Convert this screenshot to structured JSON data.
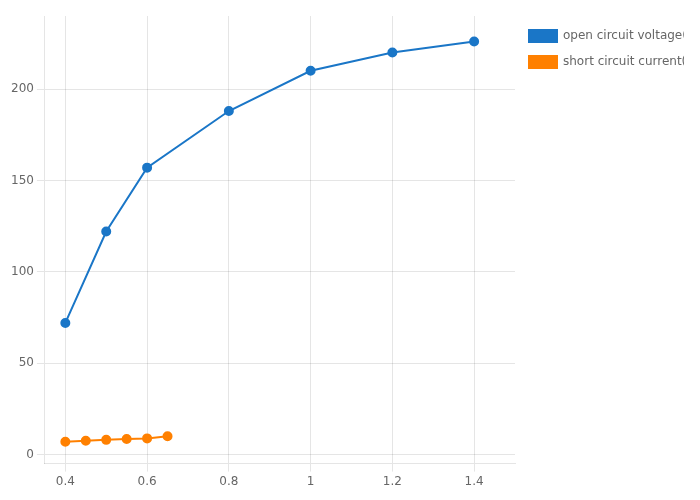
{
  "chart_data": {
    "type": "line",
    "series": [
      {
        "name": "open circuit voltage(V)",
        "color": "#1a76c7",
        "marker": "circle",
        "line_style": "solid",
        "x": [
          0.4,
          0.5,
          0.6,
          0.8,
          1.0,
          1.2,
          1.4
        ],
        "values": [
          72,
          122,
          157,
          188,
          210,
          220,
          226
        ]
      },
      {
        "name": "short circuit current(A)",
        "color": "#ff8000",
        "marker": "circle",
        "line_style": "solid",
        "x": [
          0.4,
          0.45,
          0.5,
          0.55,
          0.6,
          0.65
        ],
        "values": [
          7,
          7.5,
          8,
          8.5,
          8.8,
          10
        ]
      }
    ],
    "xlim": [
      0.35,
      1.5
    ],
    "xticks": [
      0.4,
      0.6,
      0.8,
      1,
      1.2,
      1.4
    ],
    "ylim": [
      -5,
      240
    ],
    "yticks": [
      0,
      50,
      100,
      150,
      200
    ],
    "grid": true,
    "legend": "right"
  }
}
